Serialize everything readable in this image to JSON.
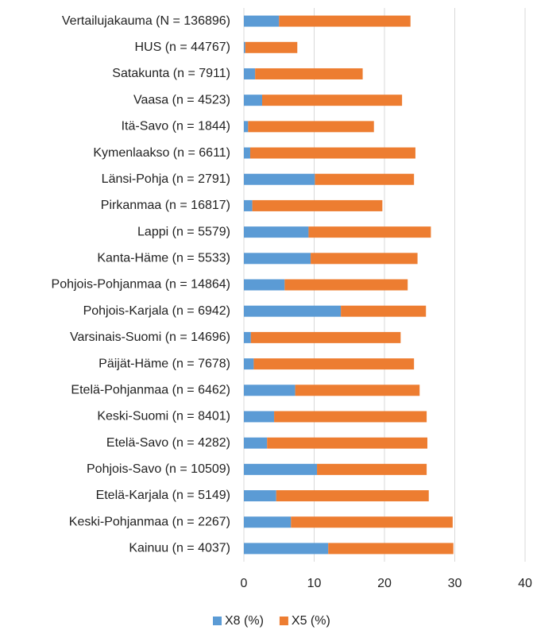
{
  "chart_data": {
    "type": "stacked-barh",
    "categories": [
      "Vertailujakauma (N = 136896)",
      "HUS (n = 44767)",
      "Satakunta (n = 7911)",
      "Vaasa (n = 4523)",
      "Itä-Savo (n = 1844)",
      "Kymenlaakso (n = 6611)",
      "Länsi-Pohja (n = 2791)",
      "Pirkanmaa (n = 16817)",
      "Lappi (n = 5579)",
      "Kanta-Häme (n = 5533)",
      "Pohjois-Pohjanmaa (n = 14864)",
      "Pohjois-Karjala (n = 6942)",
      "Varsinais-Suomi (n = 14696)",
      "Päijät-Häme (n = 7678)",
      "Etelä-Pohjanmaa (n = 6462)",
      "Keski-Suomi (n = 8401)",
      "Etelä-Savo (n = 4282)",
      "Pohjois-Savo (n = 10509)",
      "Etelä-Karjala (n = 5149)",
      "Keski-Pohjanmaa (n = 2267)",
      "Kainuu (n = 4037)"
    ],
    "series": [
      {
        "name": "X8 (%)",
        "color": "#5b9bd5",
        "values": [
          5.0,
          0.2,
          1.6,
          2.6,
          0.6,
          0.9,
          10.1,
          1.2,
          9.2,
          9.5,
          5.8,
          13.8,
          1.0,
          1.4,
          7.3,
          4.3,
          3.3,
          10.4,
          4.6,
          6.7,
          12.0
        ]
      },
      {
        "name": "X5 (%)",
        "color": "#ed7d31",
        "values": [
          18.7,
          7.4,
          15.3,
          19.9,
          17.9,
          23.5,
          14.1,
          18.5,
          17.4,
          15.2,
          17.5,
          12.1,
          21.3,
          22.8,
          17.7,
          21.7,
          22.8,
          15.6,
          21.7,
          23.0,
          17.8
        ]
      }
    ],
    "xlim": [
      0,
      40
    ],
    "xticks": [
      0,
      10,
      20,
      30,
      40
    ],
    "grid": true,
    "legend": "bottom"
  }
}
